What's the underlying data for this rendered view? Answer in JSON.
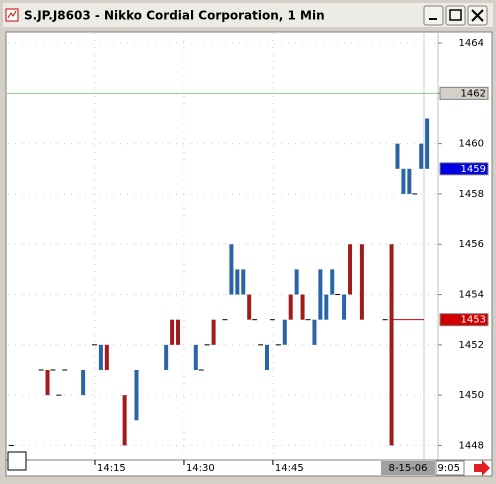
{
  "window": {
    "title": "S.JP.J8603 - Nikko Cordial Corporation, 1 Min"
  },
  "chart_data": {
    "type": "candle",
    "x": [
      1,
      6,
      7,
      8,
      9,
      10,
      13,
      15,
      16,
      17,
      20,
      22,
      27,
      28,
      29,
      32,
      33,
      34,
      35,
      37,
      38,
      39,
      40,
      41,
      42,
      43,
      44,
      45,
      46,
      47,
      48,
      49,
      50,
      51,
      52,
      53,
      54,
      55,
      56,
      57,
      58,
      60,
      64,
      65,
      66,
      67,
      68,
      69,
      70,
      71
    ],
    "open": [
      1448,
      1451,
      1451,
      1451,
      1450,
      1451,
      1450,
      1452,
      1451,
      1452,
      1450,
      1449,
      1451,
      1453,
      1453,
      1451,
      1451,
      1452,
      1453,
      1453,
      1454,
      1454,
      1454,
      1454,
      1453,
      1452,
      1451,
      1453,
      1452,
      1452,
      1454,
      1454,
      1454,
      1453,
      1452,
      1453,
      1453,
      1454,
      1454,
      1453,
      1456,
      1456,
      1453,
      1456,
      1459,
      1458,
      1458,
      1458,
      1459,
      1459
    ],
    "close": [
      1448,
      1451,
      1450,
      1451,
      1450,
      1451,
      1451,
      1452,
      1452,
      1451,
      1448,
      1451,
      1452,
      1452,
      1452,
      1452,
      1451,
      1452,
      1452,
      1453,
      1456,
      1455,
      1455,
      1453,
      1453,
      1452,
      1452,
      1453,
      1452,
      1453,
      1453,
      1455,
      1453,
      1453,
      1453,
      1455,
      1454,
      1455,
      1454,
      1454,
      1454,
      1453,
      1453,
      1448,
      1460,
      1459,
      1459,
      1458,
      1460,
      1461
    ],
    "up_color": "#2a64a8",
    "down_color": "#a01c1c",
    "xlim": [
      0,
      73
    ],
    "xticks": [
      {
        "value": 15,
        "label": "14:15"
      },
      {
        "value": 30,
        "label": "14:30"
      },
      {
        "value": 45,
        "label": "14:45"
      }
    ],
    "ylim": [
      1447.5,
      1464.4
    ],
    "yticks": [
      1448,
      1450,
      1452,
      1454,
      1456,
      1458,
      1460,
      1462,
      1464
    ],
    "grid": true,
    "price_markers": [
      {
        "value": 1462,
        "bg": "#d4d0c8",
        "fg": "#000000",
        "line": "full",
        "line_color": "#90c890"
      },
      {
        "value": 1459,
        "bg": "#0000e0",
        "fg": "#ffffff",
        "line": "none",
        "line_color": "#0000e0"
      },
      {
        "value": 1453,
        "bg": "#d00000",
        "fg": "#ffffff",
        "line": "partial",
        "line_color": "#d00000"
      }
    ],
    "session_date": "8-15-06",
    "last_time": "9:05"
  }
}
